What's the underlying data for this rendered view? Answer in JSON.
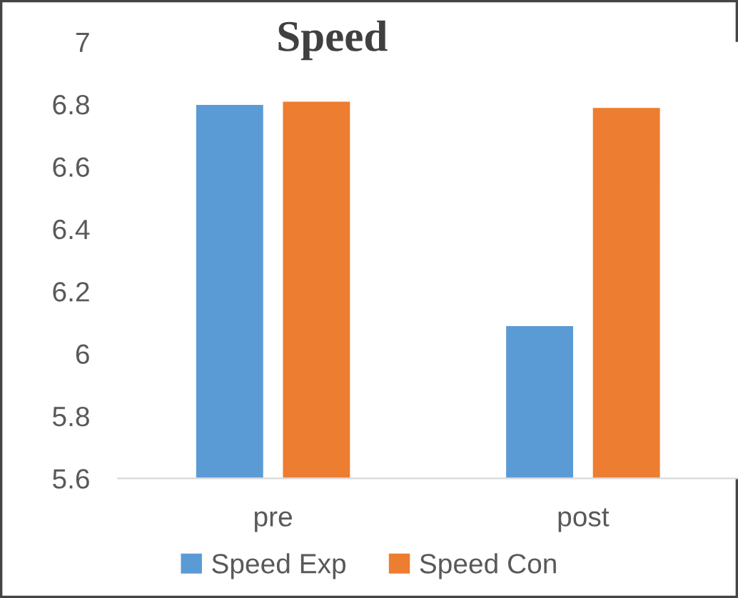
{
  "chart_data": {
    "type": "bar",
    "title": "Speed",
    "categories": [
      "pre",
      "post"
    ],
    "series": [
      {
        "name": "Speed Exp",
        "color": "#5b9bd5",
        "values": [
          6.8,
          6.09
        ]
      },
      {
        "name": "Speed Con",
        "color": "#ed7d31",
        "values": [
          6.81,
          6.79
        ]
      }
    ],
    "ylim": [
      5.6,
      7
    ],
    "yticks": [
      5.6,
      5.8,
      6,
      6.2,
      6.4,
      6.6,
      6.8,
      7
    ],
    "grid": false,
    "legend": "bottom"
  }
}
